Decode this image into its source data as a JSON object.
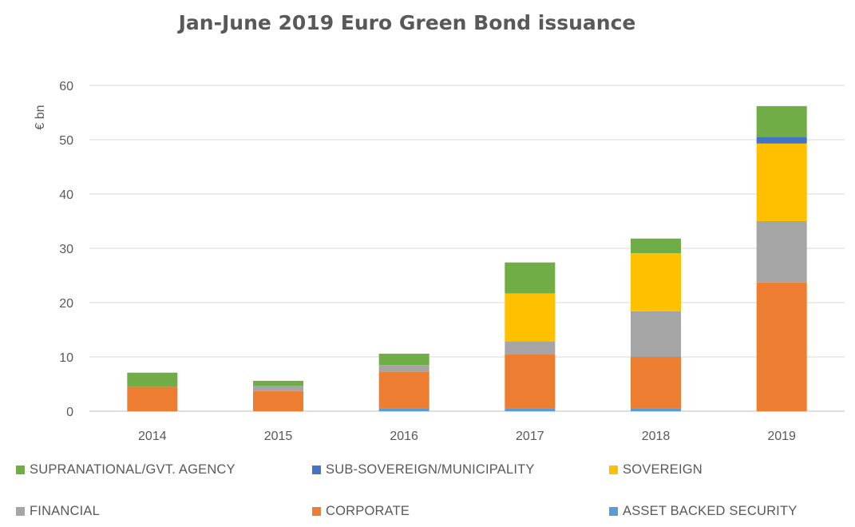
{
  "chart_data": {
    "type": "bar",
    "stacked": true,
    "title": "Jan-June 2019 Euro Green Bond issuance",
    "ylabel": "€ bn",
    "xlabel": "",
    "ylim": [
      0,
      60
    ],
    "yticks": [
      0,
      10,
      20,
      30,
      40,
      50,
      60
    ],
    "categories": [
      "2014",
      "2015",
      "2016",
      "2017",
      "2018",
      "2019"
    ],
    "grid": true,
    "legend_position": "bottom",
    "series": [
      {
        "name": "ASSET BACKED SECURITY",
        "color": "#5B9BD5",
        "values": [
          0,
          0,
          0.5,
          0.5,
          0.5,
          0
        ]
      },
      {
        "name": "CORPORATE",
        "color": "#ED7D31",
        "values": [
          4.5,
          3.7,
          6.8,
          10,
          9.5,
          23.7
        ]
      },
      {
        "name": "FINANCIAL",
        "color": "#A5A5A5",
        "values": [
          0,
          1,
          1.2,
          2.4,
          8.4,
          11.3
        ]
      },
      {
        "name": "SOVEREIGN",
        "color": "#FFC000",
        "values": [
          0,
          0,
          0,
          8.8,
          10.7,
          14.3
        ]
      },
      {
        "name": "SUB-SOVEREIGN/MUNICIPALITY",
        "color": "#4472C4",
        "values": [
          0,
          0,
          0,
          0,
          0,
          1.2
        ]
      },
      {
        "name": "SUPRANATIONAL/GVT. AGENCY",
        "color": "#70AD47",
        "values": [
          2.6,
          0.9,
          2.1,
          5.7,
          2.7,
          5.7
        ]
      }
    ]
  }
}
